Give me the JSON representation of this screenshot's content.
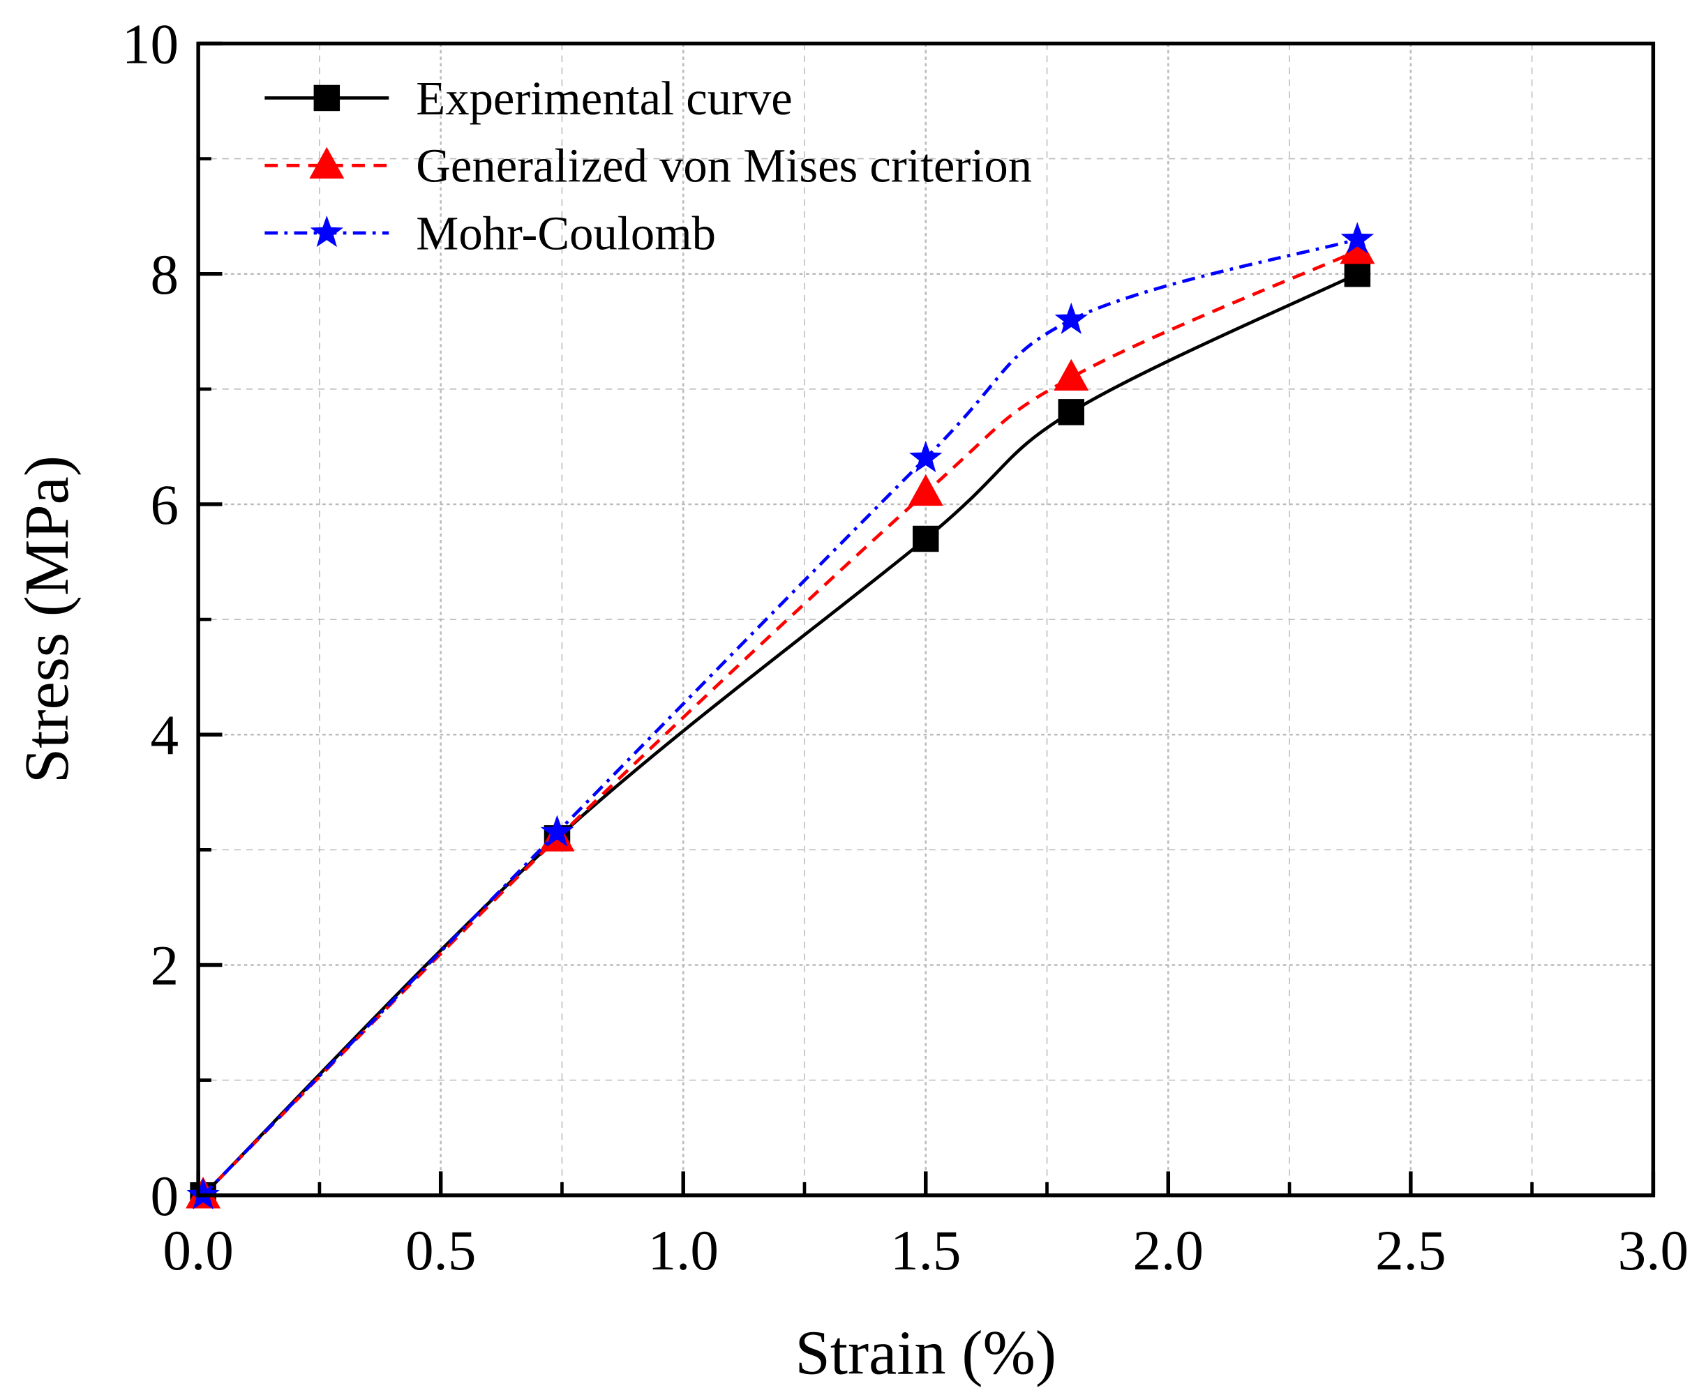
{
  "chart_data": {
    "type": "line",
    "title": "",
    "xlabel": "Strain (%)",
    "ylabel": "Stress (MPa)",
    "xlim": [
      0,
      3.0
    ],
    "ylim": [
      0,
      10
    ],
    "xticks": [
      "0.0",
      "0.5",
      "1.0",
      "1.5",
      "2.0",
      "2.5",
      "3.0"
    ],
    "yticks": [
      "0",
      "2",
      "4",
      "6",
      "8",
      "10"
    ],
    "grid": true,
    "legend_position": "top-left",
    "series": [
      {
        "name": "Experimental curve",
        "color": "#000000",
        "marker": "square",
        "dash": "solid",
        "x": [
          0.01,
          0.74,
          1.5,
          1.8,
          2.39
        ],
        "y": [
          0.0,
          3.1,
          5.7,
          6.8,
          8.0
        ]
      },
      {
        "name": "Generalized von Mises criterion",
        "color": "#ff0000",
        "marker": "triangle",
        "dash": "dash",
        "x": [
          0.01,
          0.74,
          1.5,
          1.8,
          2.39
        ],
        "y": [
          0.0,
          3.1,
          6.1,
          7.1,
          8.2
        ]
      },
      {
        "name": "Mohr-Coulomb",
        "color": "#0000ff",
        "marker": "star",
        "dash": "dashdot",
        "x": [
          0.01,
          0.74,
          1.5,
          1.8,
          2.39
        ],
        "y": [
          0.0,
          3.15,
          6.4,
          7.6,
          8.3
        ]
      }
    ]
  }
}
